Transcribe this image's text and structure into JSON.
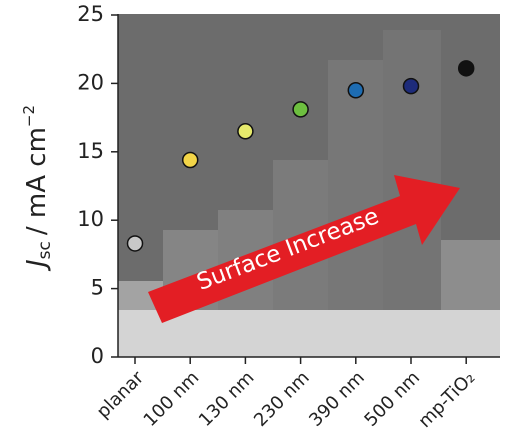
{
  "chart_data": {
    "type": "scatter",
    "y_label": {
      "symbol": "J",
      "subscript": "sc",
      "unit": "/  mA cm",
      "exponent": "−2"
    },
    "annotation": "Surface Increase",
    "categories": [
      "planar",
      "100 nm",
      "130 nm",
      "230 nm",
      "390 nm",
      "500 nm",
      "mp-TiO₂"
    ],
    "values": [
      8.3,
      14.4,
      16.5,
      18.1,
      19.5,
      19.8,
      21.1
    ],
    "colors": [
      "#c8c8c8",
      "#f3d548",
      "#e6ea6c",
      "#6dbf3f",
      "#1d6cb2",
      "#1d2b7a",
      "#111111"
    ],
    "ylim": [
      0,
      25
    ],
    "yticks": [
      0,
      5,
      10,
      15,
      20,
      25
    ]
  }
}
